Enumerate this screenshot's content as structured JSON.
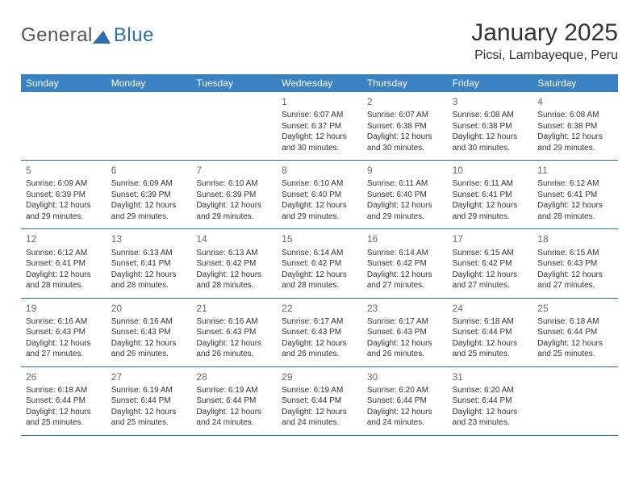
{
  "brand": {
    "general": "General",
    "blue": "Blue"
  },
  "title": "January 2025",
  "location": "Picsi, Lambayeque, Peru",
  "day_headers": [
    "Sunday",
    "Monday",
    "Tuesday",
    "Wednesday",
    "Thursday",
    "Friday",
    "Saturday"
  ],
  "colors": {
    "accent": "#3b82c4",
    "rule": "#2c6fb0",
    "text": "#333333",
    "muted_daynum": "#6b6b6b",
    "background": "#ffffff"
  },
  "weeks": [
    [
      null,
      null,
      null,
      {
        "n": "1",
        "sr": "6:07 AM",
        "ss": "6:37 PM",
        "dl": "12 hours and 30 minutes."
      },
      {
        "n": "2",
        "sr": "6:07 AM",
        "ss": "6:38 PM",
        "dl": "12 hours and 30 minutes."
      },
      {
        "n": "3",
        "sr": "6:08 AM",
        "ss": "6:38 PM",
        "dl": "12 hours and 30 minutes."
      },
      {
        "n": "4",
        "sr": "6:08 AM",
        "ss": "6:38 PM",
        "dl": "12 hours and 29 minutes."
      }
    ],
    [
      {
        "n": "5",
        "sr": "6:09 AM",
        "ss": "6:39 PM",
        "dl": "12 hours and 29 minutes."
      },
      {
        "n": "6",
        "sr": "6:09 AM",
        "ss": "6:39 PM",
        "dl": "12 hours and 29 minutes."
      },
      {
        "n": "7",
        "sr": "6:10 AM",
        "ss": "6:39 PM",
        "dl": "12 hours and 29 minutes."
      },
      {
        "n": "8",
        "sr": "6:10 AM",
        "ss": "6:40 PM",
        "dl": "12 hours and 29 minutes."
      },
      {
        "n": "9",
        "sr": "6:11 AM",
        "ss": "6:40 PM",
        "dl": "12 hours and 29 minutes."
      },
      {
        "n": "10",
        "sr": "6:11 AM",
        "ss": "6:41 PM",
        "dl": "12 hours and 29 minutes."
      },
      {
        "n": "11",
        "sr": "6:12 AM",
        "ss": "6:41 PM",
        "dl": "12 hours and 28 minutes."
      }
    ],
    [
      {
        "n": "12",
        "sr": "6:12 AM",
        "ss": "6:41 PM",
        "dl": "12 hours and 28 minutes."
      },
      {
        "n": "13",
        "sr": "6:13 AM",
        "ss": "6:41 PM",
        "dl": "12 hours and 28 minutes."
      },
      {
        "n": "14",
        "sr": "6:13 AM",
        "ss": "6:42 PM",
        "dl": "12 hours and 28 minutes."
      },
      {
        "n": "15",
        "sr": "6:14 AM",
        "ss": "6:42 PM",
        "dl": "12 hours and 28 minutes."
      },
      {
        "n": "16",
        "sr": "6:14 AM",
        "ss": "6:42 PM",
        "dl": "12 hours and 27 minutes."
      },
      {
        "n": "17",
        "sr": "6:15 AM",
        "ss": "6:42 PM",
        "dl": "12 hours and 27 minutes."
      },
      {
        "n": "18",
        "sr": "6:15 AM",
        "ss": "6:43 PM",
        "dl": "12 hours and 27 minutes."
      }
    ],
    [
      {
        "n": "19",
        "sr": "6:16 AM",
        "ss": "6:43 PM",
        "dl": "12 hours and 27 minutes."
      },
      {
        "n": "20",
        "sr": "6:16 AM",
        "ss": "6:43 PM",
        "dl": "12 hours and 26 minutes."
      },
      {
        "n": "21",
        "sr": "6:16 AM",
        "ss": "6:43 PM",
        "dl": "12 hours and 26 minutes."
      },
      {
        "n": "22",
        "sr": "6:17 AM",
        "ss": "6:43 PM",
        "dl": "12 hours and 26 minutes."
      },
      {
        "n": "23",
        "sr": "6:17 AM",
        "ss": "6:43 PM",
        "dl": "12 hours and 26 minutes."
      },
      {
        "n": "24",
        "sr": "6:18 AM",
        "ss": "6:44 PM",
        "dl": "12 hours and 25 minutes."
      },
      {
        "n": "25",
        "sr": "6:18 AM",
        "ss": "6:44 PM",
        "dl": "12 hours and 25 minutes."
      }
    ],
    [
      {
        "n": "26",
        "sr": "6:18 AM",
        "ss": "6:44 PM",
        "dl": "12 hours and 25 minutes."
      },
      {
        "n": "27",
        "sr": "6:19 AM",
        "ss": "6:44 PM",
        "dl": "12 hours and 25 minutes."
      },
      {
        "n": "28",
        "sr": "6:19 AM",
        "ss": "6:44 PM",
        "dl": "12 hours and 24 minutes."
      },
      {
        "n": "29",
        "sr": "6:19 AM",
        "ss": "6:44 PM",
        "dl": "12 hours and 24 minutes."
      },
      {
        "n": "30",
        "sr": "6:20 AM",
        "ss": "6:44 PM",
        "dl": "12 hours and 24 minutes."
      },
      {
        "n": "31",
        "sr": "6:20 AM",
        "ss": "6:44 PM",
        "dl": "12 hours and 23 minutes."
      },
      null
    ]
  ],
  "labels": {
    "sunrise": "Sunrise: ",
    "sunset": "Sunset: ",
    "daylight": "Daylight: "
  }
}
